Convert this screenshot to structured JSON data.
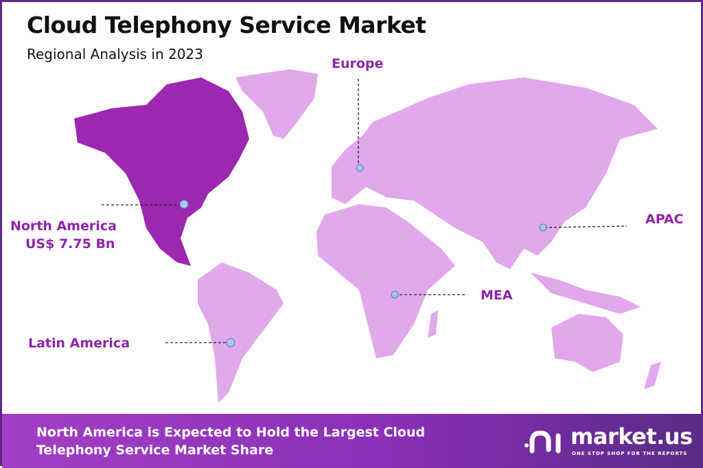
{
  "header": {
    "title": "Cloud Telephony Service Market",
    "subtitle": "Regional Analysis in 2023"
  },
  "regions": [
    {
      "name": "North America",
      "value": "US$ 7.75 Bn",
      "highlighted": true
    },
    {
      "name": "Europe",
      "highlighted": false
    },
    {
      "name": "APAC",
      "highlighted": false
    },
    {
      "name": "MEA",
      "highlighted": false
    },
    {
      "name": "Latin America",
      "highlighted": false
    }
  ],
  "colors": {
    "highlight": "#9c27b0",
    "region": "#e2a8ec",
    "label": "#8e24aa",
    "marker": "#a9c4f2",
    "banner": "#8a2fb8"
  },
  "banner": {
    "text": "North America is Expected to Hold the Largest Cloud Telephony Service Market Share"
  },
  "logo": {
    "name": "market.us",
    "tagline": "ONE STOP SHOP FOR THE REPORTS"
  }
}
